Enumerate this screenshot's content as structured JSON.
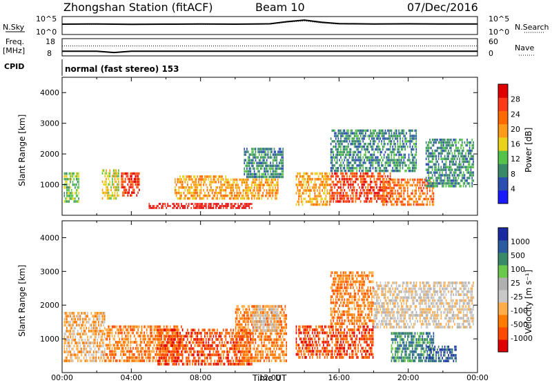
{
  "header": {
    "station": "Zhongshan Station (fitACF)",
    "beam": "Beam 10",
    "date": "07/Dec/2016"
  },
  "summary_panels": {
    "left_label_top": "N.Sky",
    "left_ticks_top": [
      "10^5",
      "10^0"
    ],
    "right_ticks_top": [
      "10^5",
      "10^0"
    ],
    "right_label_top": "N.Search",
    "left_label_mid": "Freq.",
    "left_unit_mid": "[MHz]",
    "left_ticks_mid": [
      "18",
      "8"
    ],
    "right_ticks_mid": [
      "60",
      "0"
    ],
    "right_label_mid": "Nave",
    "cpid_label": "CPID",
    "cpid_text": "normal (fast stereo) 153"
  },
  "colors": {
    "power_scale": [
      "#1a1aff",
      "#2a4fb0",
      "#3a8a6a",
      "#55c24a",
      "#e8d21a",
      "#ff9a1a",
      "#ff6a00",
      "#ff3a1a",
      "#e00000"
    ],
    "velocity_scale": [
      "#e00000",
      "#ff4a00",
      "#ff7a00",
      "#ffae4a",
      "#c8c8c8",
      "#b0b0b0",
      "#6ac84a",
      "#3a8a6a",
      "#2a5aa0",
      "#1a2aa0"
    ]
  },
  "chart_data": [
    {
      "type": "line",
      "panel": "N.Sky / N.Search",
      "x": [
        "00:00",
        "02:00",
        "04:00",
        "06:00",
        "08:00",
        "10:00",
        "12:00",
        "13:00",
        "14:00",
        "15:00",
        "16:00",
        "18:00",
        "20:00",
        "22:00",
        "24:00"
      ],
      "series": [
        {
          "name": "N.Sky",
          "values": [
            1000,
            1200,
            900,
            1000,
            1100,
            1000,
            1300,
            8000,
            30000,
            5000,
            1500,
            1200,
            1300,
            1100,
            1200
          ]
        },
        {
          "name": "N.Search",
          "values": [
            800,
            900,
            700,
            800,
            900,
            850,
            1000,
            5000,
            15000,
            2500,
            1000,
            900,
            950,
            900,
            950
          ]
        }
      ],
      "ylim": [
        1,
        100000
      ],
      "yscale": "log"
    },
    {
      "type": "line",
      "panel": "Freq. / Nave",
      "x": [
        "00:00",
        "02:00",
        "03:00",
        "04:00",
        "06:00",
        "12:00",
        "18:00",
        "24:00"
      ],
      "series": [
        {
          "name": "Freq.",
          "values": [
            10,
            10,
            9,
            10,
            10,
            10,
            10,
            10
          ]
        },
        {
          "name": "Nave",
          "values": [
            36,
            36,
            36,
            36,
            36,
            36,
            36,
            36
          ]
        }
      ],
      "ylim": [
        8,
        18
      ]
    },
    {
      "type": "heatmap",
      "panel": "Power",
      "xlabel": "",
      "ylabel": "Slant Range [km]",
      "xlim": [
        0,
        24
      ],
      "ylim": [
        0,
        4500
      ],
      "yticks": [
        "1000",
        "2000",
        "3000",
        "4000"
      ],
      "colorbar_label": "Power [dB]",
      "colorbar_ticks": [
        "28",
        "24",
        "20",
        "16",
        "12",
        "8",
        "4"
      ],
      "regions": [
        {
          "t0": 0.1,
          "t1": 1.0,
          "r0": 400,
          "r1": 1400,
          "level": 3
        },
        {
          "t0": 2.3,
          "t1": 3.3,
          "r0": 500,
          "r1": 1500,
          "level": 4
        },
        {
          "t0": 3.4,
          "t1": 4.5,
          "r0": 600,
          "r1": 1400,
          "level": 7
        },
        {
          "t0": 5.0,
          "t1": 11.0,
          "r0": 200,
          "r1": 400,
          "level": 8
        },
        {
          "t0": 6.5,
          "t1": 9.5,
          "r0": 500,
          "r1": 1300,
          "level": 5
        },
        {
          "t0": 9.5,
          "t1": 12.5,
          "r0": 500,
          "r1": 1200,
          "level": 5
        },
        {
          "t0": 10.5,
          "t1": 12.8,
          "r0": 1200,
          "r1": 2200,
          "level": 2
        },
        {
          "t0": 13.5,
          "t1": 15.5,
          "r0": 300,
          "r1": 1400,
          "level": 5
        },
        {
          "t0": 15.5,
          "t1": 19.0,
          "r0": 400,
          "r1": 1400,
          "level": 7
        },
        {
          "t0": 15.5,
          "t1": 20.5,
          "r0": 1400,
          "r1": 2800,
          "level": 2
        },
        {
          "t0": 18.5,
          "t1": 21.5,
          "r0": 300,
          "r1": 1200,
          "level": 6
        },
        {
          "t0": 21.0,
          "t1": 23.8,
          "r0": 900,
          "r1": 2500,
          "level": 2
        }
      ]
    },
    {
      "type": "heatmap",
      "panel": "Velocity",
      "xlabel": "Time UT",
      "ylabel": "Slant Range [km]",
      "xlim": [
        0,
        24
      ],
      "ylim": [
        0,
        4500
      ],
      "xticks": [
        "00:00",
        "04:00",
        "08:00",
        "12:00",
        "16:00",
        "20:00",
        "00:00"
      ],
      "yticks": [
        "1000",
        "2000",
        "3000",
        "4000"
      ],
      "colorbar_label": "Velocity [m s⁻¹]",
      "colorbar_ticks": [
        "1000",
        "500",
        "100",
        "25",
        "-25",
        "-100",
        "-500",
        "-1000"
      ],
      "regions": [
        {
          "t0": 0.1,
          "t1": 2.5,
          "r0": 300,
          "r1": 1800,
          "level": 3
        },
        {
          "t0": 2.5,
          "t1": 7.0,
          "r0": 300,
          "r1": 1400,
          "level": 2
        },
        {
          "t0": 5.5,
          "t1": 11.0,
          "r0": 200,
          "r1": 1300,
          "level": 1
        },
        {
          "t0": 10.0,
          "t1": 13.0,
          "r0": 300,
          "r1": 2000,
          "level": 2
        },
        {
          "t0": 11.0,
          "t1": 12.5,
          "r0": 1200,
          "r1": 2000,
          "level": 4
        },
        {
          "t0": 13.5,
          "t1": 18.0,
          "r0": 400,
          "r1": 1400,
          "level": 1
        },
        {
          "t0": 15.5,
          "t1": 18.0,
          "r0": 1400,
          "r1": 3000,
          "level": 2
        },
        {
          "t0": 18.0,
          "t1": 23.8,
          "r0": 1300,
          "r1": 2700,
          "level": 4
        },
        {
          "t0": 19.0,
          "t1": 21.5,
          "r0": 300,
          "r1": 1200,
          "level": 7
        },
        {
          "t0": 21.0,
          "t1": 22.8,
          "r0": 300,
          "r1": 800,
          "level": 8
        }
      ]
    }
  ]
}
